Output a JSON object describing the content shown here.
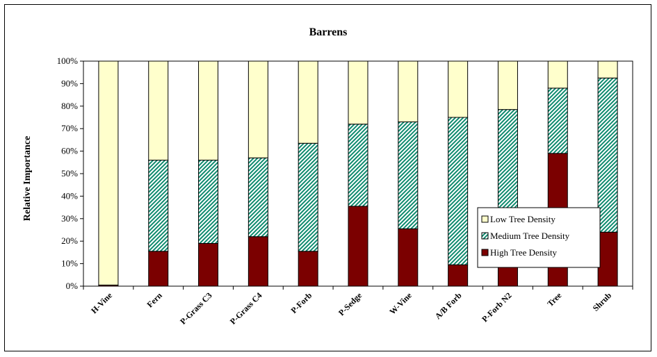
{
  "chart_data": {
    "type": "bar",
    "stacked": true,
    "percent": true,
    "title": "Barrens",
    "ylabel": "Relative Importance",
    "xlabel": "",
    "ylim": [
      0,
      100
    ],
    "yticks": [
      "0%",
      "10%",
      "20%",
      "30%",
      "40%",
      "50%",
      "60%",
      "70%",
      "80%",
      "90%",
      "100%"
    ],
    "categories": [
      "H-Vine",
      "Fern",
      "P-Grass C3",
      "P-Grass C4",
      "P-Forb",
      "P-Sedge",
      "W-Vine",
      "A/B Forb",
      "P-Forb N2",
      "Tree",
      "Shrub"
    ],
    "series": [
      {
        "name": "High Tree Density",
        "color": "#7b0000",
        "pattern": "solid",
        "values": [
          0.5,
          15.5,
          19,
          22,
          15.5,
          35.5,
          25.5,
          9.5,
          12.0,
          59,
          24
        ]
      },
      {
        "name": "Medium Tree Density",
        "color": "#0e8a6e",
        "pattern": "diagonal-hatch",
        "values": [
          0,
          40.5,
          37,
          35,
          48,
          36.5,
          47.5,
          65.5,
          66.5,
          29,
          68.5
        ]
      },
      {
        "name": "Low Tree Density",
        "color": "#ffffcc",
        "pattern": "solid",
        "values": [
          99.5,
          44,
          44,
          43,
          36.5,
          28,
          27,
          25,
          21.5,
          12,
          7.5
        ]
      }
    ],
    "legend": {
      "position": "right-inside",
      "order": [
        "Low Tree Density",
        "Medium Tree Density",
        "High Tree Density"
      ]
    },
    "grid": false
  }
}
